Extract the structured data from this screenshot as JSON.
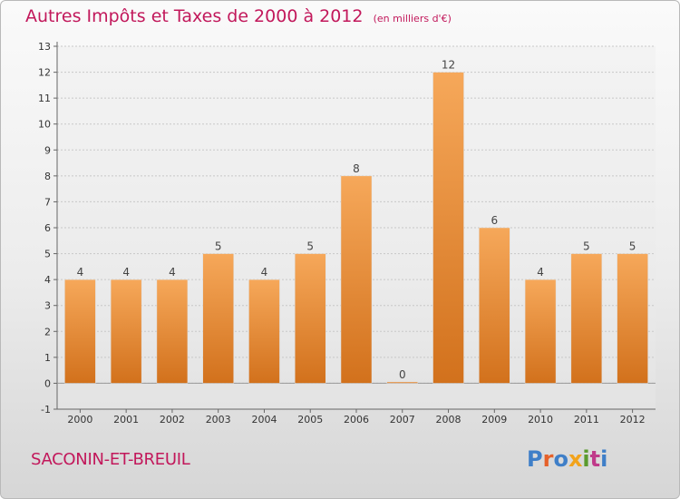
{
  "title": "Autres Impôts et Taxes de 2000 à 2012",
  "subtitle": "(en milliers d'€)",
  "place_name": "SACONIN-ET-BREUIL",
  "logo": {
    "text": "Proxiti",
    "colors": [
      "#3f7fc8",
      "#e5612a",
      "#3f7fc8",
      "#f2a31b",
      "#5a9b2e",
      "#c03a8a",
      "#3f7fc8"
    ]
  },
  "colors": {
    "title": "#c2185b",
    "bar_top": "#f6a85a",
    "bar_bottom": "#d2711c",
    "grid": "#c8c8c8"
  },
  "chart_data": {
    "type": "bar",
    "title": "Autres Impôts et Taxes de 2000 à 2012",
    "subtitle": "(en milliers d'€)",
    "categories": [
      "2000",
      "2001",
      "2002",
      "2003",
      "2004",
      "2005",
      "2006",
      "2007",
      "2008",
      "2009",
      "2010",
      "2011",
      "2012"
    ],
    "values": [
      4,
      4,
      4,
      5,
      4,
      5,
      8,
      0,
      12,
      6,
      4,
      5,
      5
    ],
    "ylim": [
      -1,
      13
    ],
    "yticks": [
      -1,
      0,
      1,
      2,
      3,
      4,
      5,
      6,
      7,
      8,
      9,
      10,
      11,
      12,
      13
    ],
    "grid": true,
    "xlabel": "",
    "ylabel": ""
  }
}
